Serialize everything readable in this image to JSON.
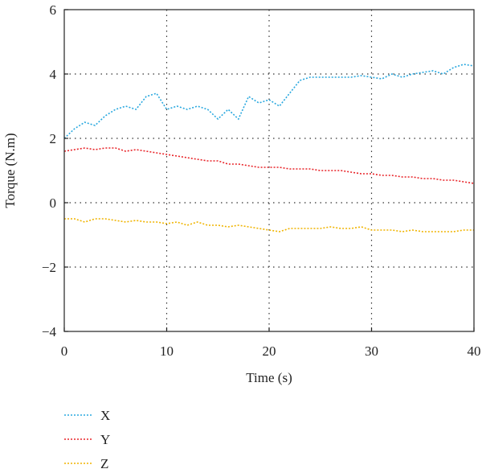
{
  "chart_data": {
    "type": "line",
    "title": "",
    "xlabel": "Time (s)",
    "ylabel": "Torque (N.m)",
    "xlim": [
      0,
      40
    ],
    "ylim": [
      -4,
      6
    ],
    "xticks": [
      0,
      10,
      20,
      30,
      40
    ],
    "yticks": [
      -4,
      -2,
      0,
      2,
      4,
      6
    ],
    "xtick_labels": [
      "0",
      "10",
      "20",
      "30",
      "40"
    ],
    "ytick_labels": [
      "−4",
      "−2",
      "0",
      "2",
      "4",
      "6"
    ],
    "grid": "dotted",
    "legend_position": "bottom-left",
    "x": [
      0,
      1,
      2,
      3,
      4,
      5,
      6,
      7,
      8,
      9,
      10,
      11,
      12,
      13,
      14,
      15,
      16,
      17,
      18,
      19,
      20,
      21,
      22,
      23,
      24,
      25,
      26,
      27,
      28,
      29,
      30,
      31,
      32,
      33,
      34,
      35,
      36,
      37,
      38,
      39,
      40
    ],
    "series": [
      {
        "name": "X",
        "color": "#29a8df",
        "values": [
          2.0,
          2.3,
          2.5,
          2.4,
          2.7,
          2.9,
          3.0,
          2.9,
          3.3,
          3.4,
          2.9,
          3.0,
          2.9,
          3.0,
          2.9,
          2.6,
          2.9,
          2.6,
          3.3,
          3.1,
          3.2,
          3.0,
          3.4,
          3.8,
          3.9,
          3.9,
          3.9,
          3.9,
          3.9,
          3.95,
          3.9,
          3.85,
          4.0,
          3.9,
          4.0,
          4.05,
          4.1,
          4.0,
          4.2,
          4.3,
          4.25
        ]
      },
      {
        "name": "Y",
        "color": "#e8252a",
        "values": [
          1.6,
          1.65,
          1.7,
          1.65,
          1.7,
          1.7,
          1.6,
          1.65,
          1.6,
          1.55,
          1.5,
          1.45,
          1.4,
          1.35,
          1.3,
          1.3,
          1.2,
          1.2,
          1.15,
          1.1,
          1.1,
          1.1,
          1.05,
          1.05,
          1.05,
          1.0,
          1.0,
          1.0,
          0.95,
          0.9,
          0.9,
          0.85,
          0.85,
          0.8,
          0.8,
          0.75,
          0.75,
          0.7,
          0.7,
          0.65,
          0.6
        ]
      },
      {
        "name": "Z",
        "color": "#f0b400",
        "values": [
          -0.5,
          -0.5,
          -0.6,
          -0.5,
          -0.5,
          -0.55,
          -0.6,
          -0.55,
          -0.6,
          -0.6,
          -0.65,
          -0.6,
          -0.7,
          -0.6,
          -0.7,
          -0.7,
          -0.75,
          -0.7,
          -0.75,
          -0.8,
          -0.85,
          -0.9,
          -0.8,
          -0.8,
          -0.8,
          -0.8,
          -0.75,
          -0.8,
          -0.8,
          -0.75,
          -0.85,
          -0.85,
          -0.85,
          -0.9,
          -0.85,
          -0.9,
          -0.9,
          -0.9,
          -0.9,
          -0.85,
          -0.85
        ]
      }
    ]
  }
}
